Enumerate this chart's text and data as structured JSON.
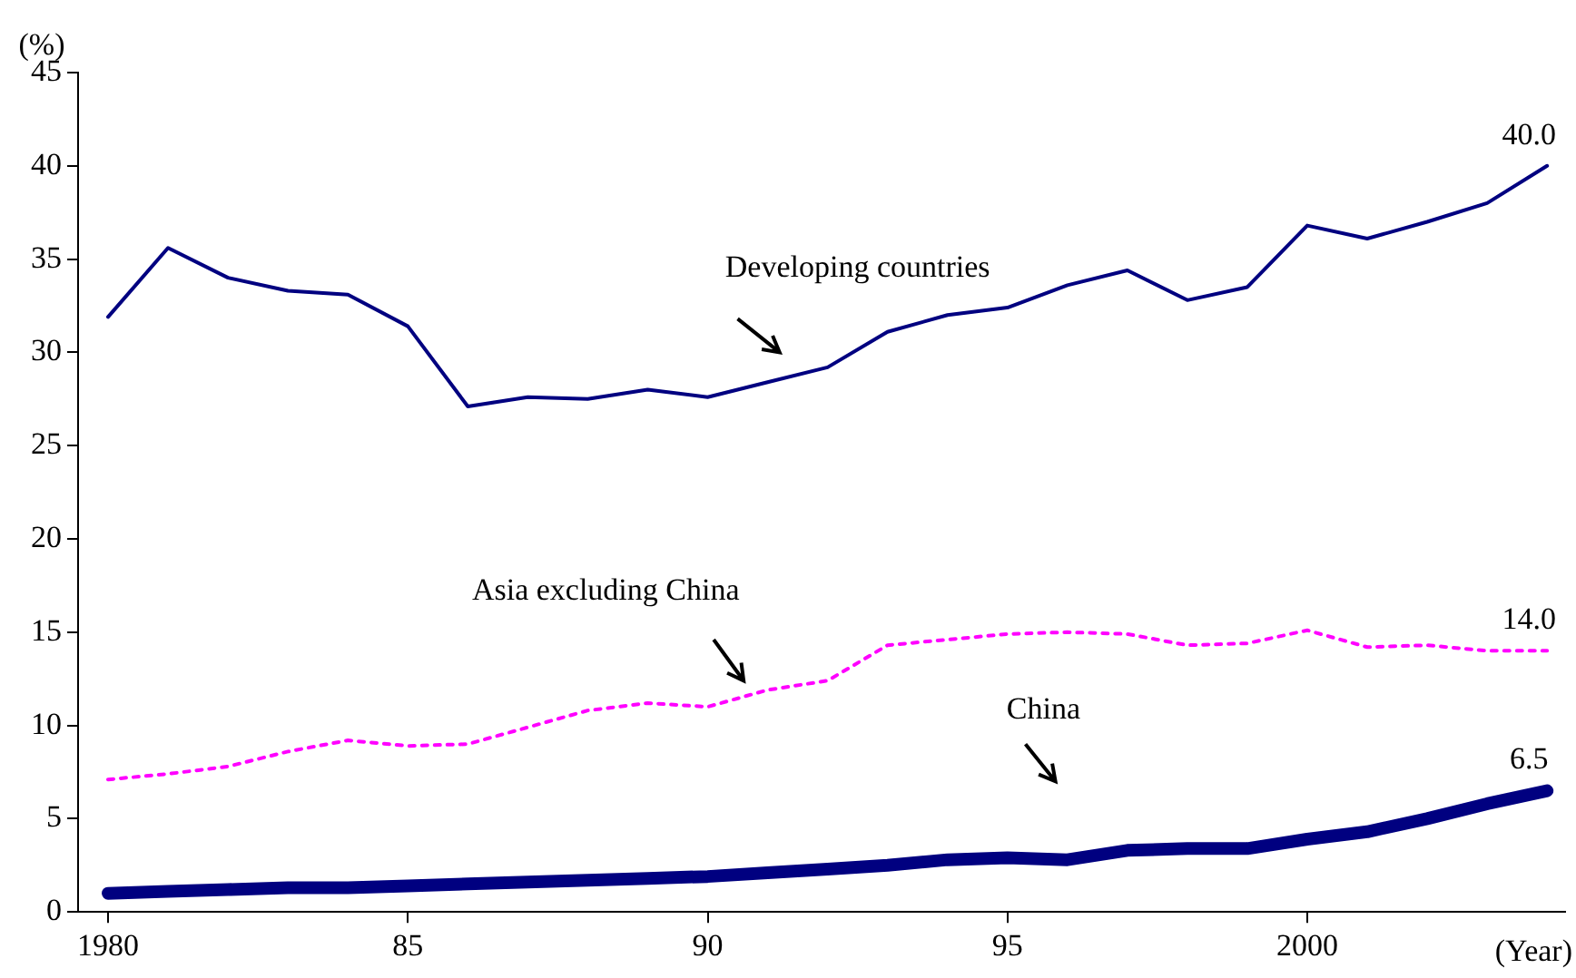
{
  "chart_data": {
    "type": "line",
    "xlabel": "(Year)",
    "ylabel": "(%)",
    "x": [
      1980,
      1981,
      1982,
      1983,
      1984,
      1985,
      1986,
      1987,
      1988,
      1989,
      1990,
      1991,
      1992,
      1993,
      1994,
      1995,
      1996,
      1997,
      1998,
      1999,
      2000,
      2001,
      2002,
      2003,
      2004
    ],
    "series": [
      {
        "name": "Developing countries",
        "color": "#000080",
        "line_style": "solid",
        "values": [
          31.9,
          35.6,
          34.0,
          33.3,
          33.1,
          31.4,
          27.1,
          27.6,
          27.5,
          28.0,
          27.6,
          28.4,
          29.2,
          31.1,
          32.0,
          32.4,
          33.6,
          34.4,
          32.8,
          33.5,
          36.8,
          36.1,
          37.0,
          38.0,
          40.0
        ],
        "value_labels": [
          null,
          null,
          null,
          null,
          null,
          null,
          null,
          null,
          null,
          null,
          null,
          null,
          null,
          null,
          null,
          null,
          null,
          null,
          null,
          null,
          null,
          null,
          null,
          null,
          "40.0"
        ]
      },
      {
        "name": "Asia excluding China",
        "color": "#ff00ff",
        "line_style": "dotted",
        "values": [
          7.1,
          7.4,
          7.8,
          8.6,
          9.2,
          8.9,
          9.0,
          9.9,
          10.8,
          11.2,
          11.0,
          11.9,
          12.4,
          14.3,
          14.6,
          14.9,
          15.0,
          14.9,
          14.3,
          14.4,
          15.1,
          14.2,
          14.3,
          14.0,
          14.0
        ],
        "value_labels": [
          null,
          null,
          null,
          null,
          null,
          null,
          null,
          null,
          null,
          null,
          null,
          null,
          null,
          null,
          null,
          null,
          null,
          null,
          null,
          null,
          null,
          null,
          null,
          null,
          "14.0"
        ]
      },
      {
        "name": "China",
        "color": "#000080",
        "line_style": "solid",
        "values": [
          1.0,
          1.1,
          1.2,
          1.3,
          1.3,
          1.4,
          1.5,
          1.6,
          1.7,
          1.8,
          1.9,
          2.1,
          2.3,
          2.5,
          2.8,
          2.9,
          2.8,
          3.3,
          3.4,
          3.4,
          3.9,
          4.3,
          5.0,
          5.8,
          6.5
        ],
        "value_labels": [
          null,
          null,
          null,
          null,
          null,
          null,
          null,
          null,
          null,
          null,
          null,
          null,
          null,
          null,
          null,
          null,
          null,
          null,
          null,
          null,
          null,
          null,
          null,
          null,
          "6.5"
        ]
      }
    ],
    "xlim": [
      1979.5,
      2004.3
    ],
    "xticks": [
      1980,
      {
        "value": 1985,
        "label": "85"
      },
      {
        "value": 1990,
        "label": "90"
      },
      {
        "value": 1995,
        "label": "95"
      },
      2000
    ],
    "ylim": [
      0,
      45
    ],
    "yticks": [
      0,
      5,
      10,
      15,
      20,
      25,
      30,
      35,
      40,
      45
    ],
    "grid": false,
    "legend": false,
    "marker": "none"
  }
}
